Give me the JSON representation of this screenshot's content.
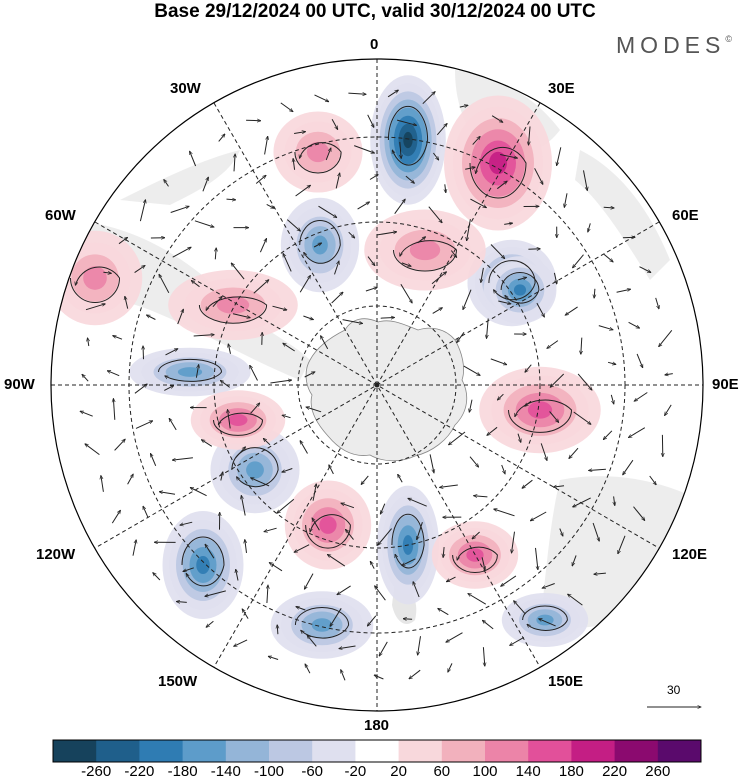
{
  "title": "Base 29/12/2024 00 UTC, valid 30/12/2024 00 UTC",
  "brand": "MODES",
  "brand_mark": "©",
  "longitude_labels": {
    "top": "0",
    "top_left": "30W",
    "top_right": "30E",
    "upper_left": "60W",
    "upper_right": "60E",
    "left": "90W",
    "right": "90E",
    "lower_left": "120W",
    "lower_right": "120E",
    "bottom_left": "150W",
    "bottom_right": "150E",
    "bottom": "180"
  },
  "reference_vector": {
    "label": "30"
  },
  "colorbar": {
    "ticks": [
      "-260",
      "-220",
      "-180",
      "-140",
      "-100",
      "-60",
      "-20",
      "20",
      "60",
      "100",
      "140",
      "180",
      "220",
      "260"
    ],
    "colors": [
      "#16425c",
      "#1f5f8b",
      "#2f7cb3",
      "#5d9cca",
      "#94b5d8",
      "#bcc8e3",
      "#dfe0ef",
      "#ffffff",
      "#f8d8dc",
      "#f2b1bd",
      "#ec84a8",
      "#e2509a",
      "#c41e84",
      "#8b0a6f",
      "#5a0a6c"
    ]
  },
  "anomaly_features": [
    {
      "sign": "neg",
      "level": "-260"
    },
    {
      "sign": "pos",
      "level": "180"
    },
    {
      "sign": "pos",
      "level": "100"
    },
    {
      "sign": "neg",
      "level": "-140"
    },
    {
      "sign": "neg",
      "level": "-180"
    },
    {
      "sign": "pos",
      "level": "100"
    },
    {
      "sign": "pos",
      "level": "100"
    },
    {
      "sign": "neg",
      "level": "-140"
    },
    {
      "sign": "neg",
      "level": "-180"
    },
    {
      "sign": "pos",
      "level": "140"
    },
    {
      "sign": "neg",
      "level": "-140"
    },
    {
      "sign": "pos",
      "level": "140"
    },
    {
      "sign": "neg",
      "level": "-180"
    },
    {
      "sign": "pos",
      "level": "140"
    },
    {
      "sign": "pos",
      "level": "140"
    },
    {
      "sign": "neg",
      "level": "-180"
    },
    {
      "sign": "neg",
      "level": "-140"
    },
    {
      "sign": "neg",
      "level": "-140"
    },
    {
      "sign": "pos",
      "level": "100"
    }
  ]
}
